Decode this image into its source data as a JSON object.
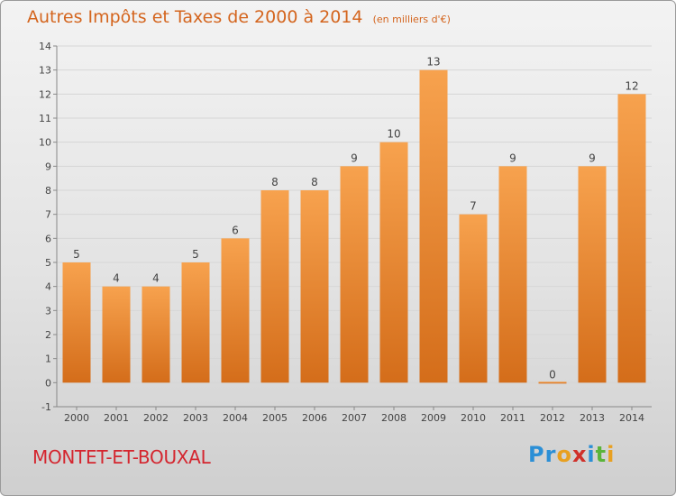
{
  "title": "Autres Impôts et Taxes de 2000 à 2014",
  "unit": "(en milliers d'€)",
  "commune": "MONTET-ET-BOUXAL",
  "logo": {
    "letters": [
      "P",
      "r",
      "o",
      "x",
      "i",
      "t",
      "i"
    ],
    "colors": [
      "#2b8fd6",
      "#2b8fd6",
      "#e8a020",
      "#d0302a",
      "#2b8fd6",
      "#5ab43a",
      "#e8a020"
    ]
  },
  "chart_data": {
    "type": "bar",
    "title": "Autres Impôts et Taxes de 2000 à 2014",
    "unit": "(en milliers d'€)",
    "categories": [
      "2000",
      "2001",
      "2002",
      "2003",
      "2004",
      "2005",
      "2006",
      "2007",
      "2008",
      "2009",
      "2010",
      "2011",
      "2012",
      "2013",
      "2014"
    ],
    "values": [
      5,
      4,
      4,
      5,
      6,
      8,
      8,
      9,
      10,
      13,
      7,
      9,
      0,
      9,
      12
    ],
    "value_labels": [
      "5",
      "4",
      "4",
      "5",
      "6",
      "8",
      "8",
      "9",
      "10",
      "13",
      "7",
      "9",
      "0",
      "9",
      "12"
    ],
    "y_ticks": [
      "-1",
      "0",
      "1",
      "2",
      "3",
      "4",
      "5",
      "6",
      "7",
      "8",
      "9",
      "10",
      "11",
      "12",
      "13",
      "14"
    ],
    "ylim": [
      -1,
      14
    ],
    "colors": {
      "bar_light": "#f7a24e",
      "bar_dark": "#d46d1a",
      "text": "#444444"
    }
  }
}
